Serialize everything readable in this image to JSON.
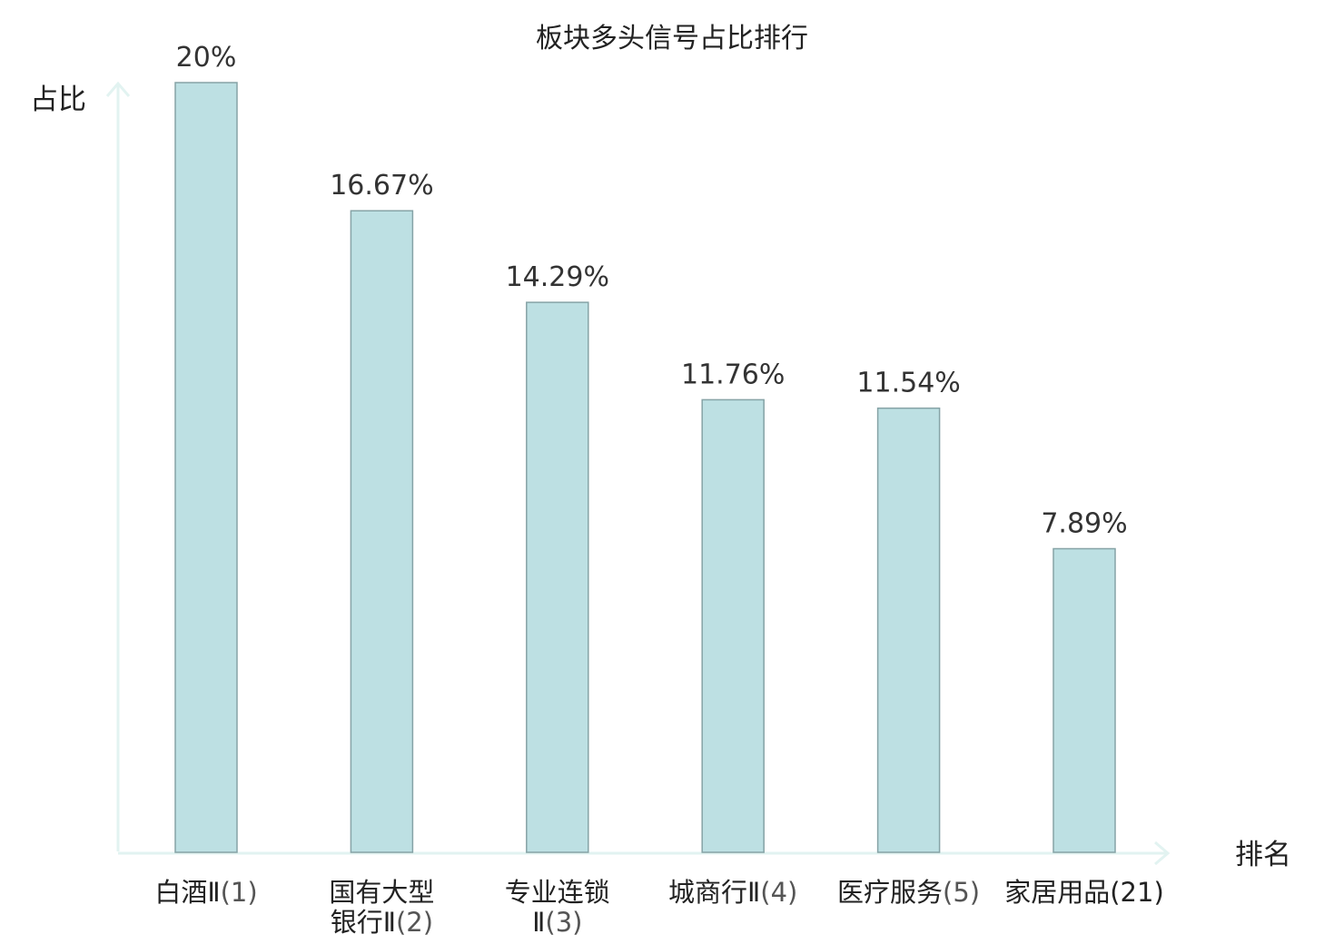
{
  "chart_data": {
    "type": "bar",
    "title": "板块多头信号占比排行",
    "xlabel": "排名",
    "ylabel": "占比",
    "ylim": [
      0,
      20
    ],
    "categories": [
      {
        "lines": [
          [
            "白酒Ⅱ",
            "(1)"
          ]
        ],
        "highlight": false
      },
      {
        "lines": [
          [
            "国有大型",
            ""
          ],
          [
            "银行Ⅱ",
            "(2)"
          ]
        ],
        "highlight": false
      },
      {
        "lines": [
          [
            "专业连锁",
            ""
          ],
          [
            "Ⅱ",
            "(3)"
          ]
        ],
        "highlight": false
      },
      {
        "lines": [
          [
            "城商行Ⅱ",
            "(4)"
          ]
        ],
        "highlight": false
      },
      {
        "lines": [
          [
            "医疗服务",
            "(5)"
          ]
        ],
        "highlight": false
      },
      {
        "lines": [
          [
            "家居用品",
            "(21)"
          ]
        ],
        "highlight": true
      }
    ],
    "values": [
      20,
      16.67,
      14.29,
      11.76,
      11.54,
      7.89
    ],
    "value_labels": [
      "20%",
      "16.67%",
      "14.29%",
      "11.76%",
      "11.54%",
      "7.89%"
    ],
    "grid": false,
    "legend": "none",
    "colors": {
      "bar_fill": "#bde0e3",
      "bar_stroke": "#86a3a6",
      "axis": "#e2f3f1",
      "highlight": "#d93a2e"
    }
  }
}
